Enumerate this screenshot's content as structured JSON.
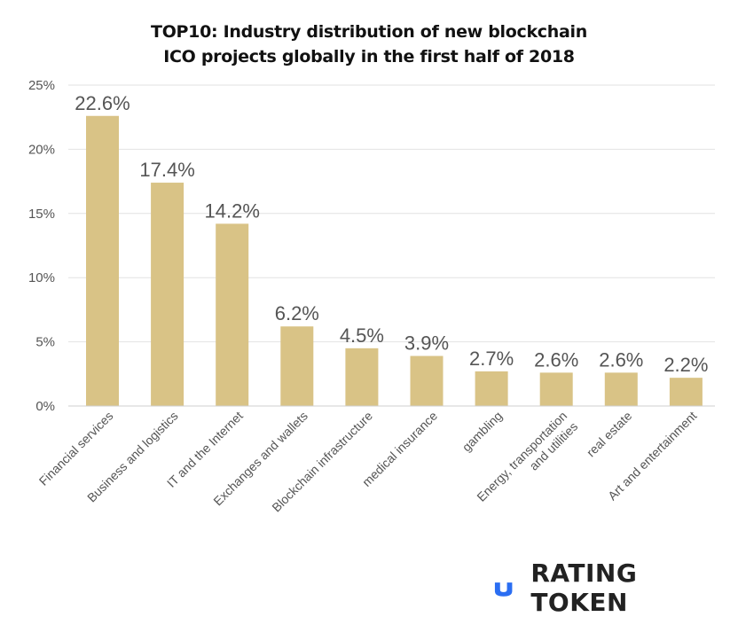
{
  "title_line1": "TOP10: Industry distribution of new blockchain",
  "title_line2": "ICO projects globally in the first half of 2018",
  "logo_text": "RATING TOKEN",
  "colors": {
    "bar": "#D9C386",
    "grid": "#E2E2E2",
    "tick_text": "#555555",
    "value_text": "#555555",
    "logo_mark": "#2B6EF2"
  },
  "chart_data": {
    "type": "bar",
    "title": "TOP10: Industry distribution of new blockchain ICO projects globally in the first half of 2018",
    "categories": [
      "Financial services",
      "Business and logistics",
      "IT and the Internet",
      "Exchanges and wallets",
      "Blockchain infrastructure",
      "medical insurance",
      "gambling",
      "Energy, transportation|and utilities",
      "real estate",
      "Art and entertainment"
    ],
    "values": [
      22.6,
      17.4,
      14.2,
      6.2,
      4.5,
      3.9,
      2.7,
      2.6,
      2.6,
      2.2
    ],
    "value_labels": [
      "22.6%",
      "17.4%",
      "14.2%",
      "6.2%",
      "4.5%",
      "3.9%",
      "2.7%",
      "2.6%",
      "2.6%",
      "2.2%"
    ],
    "yticks": [
      0,
      5,
      10,
      15,
      20,
      25
    ],
    "ytick_labels": [
      "0%",
      "5%",
      "10%",
      "15%",
      "20%",
      "25%"
    ],
    "ylim": [
      0,
      25
    ],
    "xlabel": "",
    "ylabel": "",
    "grid": true,
    "legend": "none"
  }
}
